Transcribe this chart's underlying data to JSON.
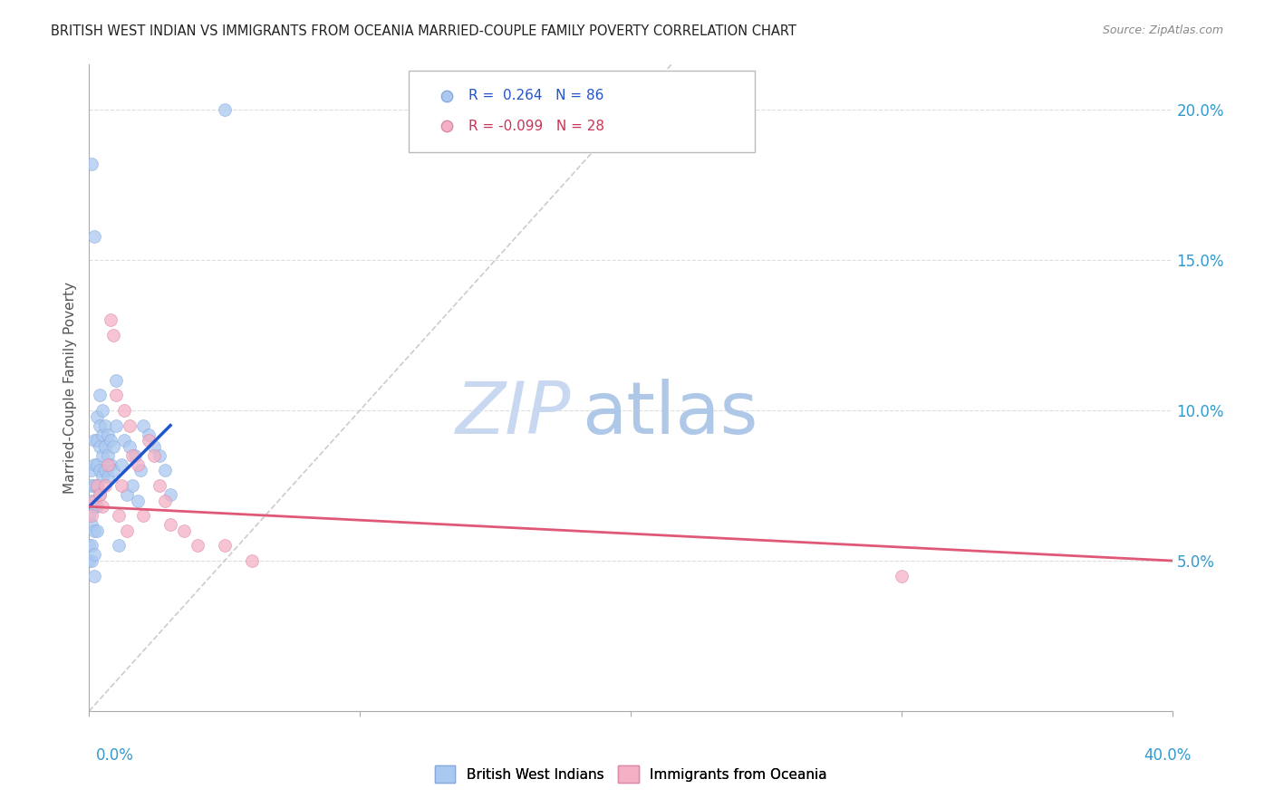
{
  "title": "BRITISH WEST INDIAN VS IMMIGRANTS FROM OCEANIA MARRIED-COUPLE FAMILY POVERTY CORRELATION CHART",
  "source": "Source: ZipAtlas.com",
  "ylabel": "Married-Couple Family Poverty",
  "ytick_labels": [
    "5.0%",
    "10.0%",
    "15.0%",
    "20.0%"
  ],
  "ytick_values": [
    0.05,
    0.1,
    0.15,
    0.2
  ],
  "blue_scatter_color": "#aac8f0",
  "pink_scatter_color": "#f4b0c4",
  "blue_line_color": "#2255cc",
  "pink_line_color": "#e05878",
  "diagonal_line_color": "#cccccc",
  "watermark_zip_color": "#c8d8f0",
  "watermark_atlas_color": "#b0c8e8",
  "R_blue": 0.264,
  "N_blue": 86,
  "R_pink": -0.099,
  "N_pink": 28,
  "xlim": [
    0.0,
    0.4
  ],
  "ylim": [
    0.0,
    0.215
  ],
  "blue_line_x": [
    0.0,
    0.03
  ],
  "blue_line_y": [
    0.068,
    0.095
  ],
  "pink_line_x": [
    0.0,
    0.4
  ],
  "pink_line_y": [
    0.068,
    0.05
  ],
  "diag_line_x": [
    0.0,
    0.215
  ],
  "diag_line_y": [
    0.0,
    0.215
  ],
  "blue_points_x": [
    0.0,
    0.0,
    0.0,
    0.001,
    0.001,
    0.001,
    0.001,
    0.001,
    0.001,
    0.002,
    0.002,
    0.002,
    0.002,
    0.002,
    0.002,
    0.002,
    0.003,
    0.003,
    0.003,
    0.003,
    0.003,
    0.003,
    0.004,
    0.004,
    0.004,
    0.004,
    0.004,
    0.005,
    0.005,
    0.005,
    0.005,
    0.006,
    0.006,
    0.006,
    0.007,
    0.007,
    0.007,
    0.008,
    0.008,
    0.009,
    0.009,
    0.01,
    0.01,
    0.011,
    0.012,
    0.013,
    0.014,
    0.015,
    0.016,
    0.017,
    0.018,
    0.019,
    0.02,
    0.022,
    0.024,
    0.026,
    0.028,
    0.03,
    0.001,
    0.002,
    0.05
  ],
  "blue_points_y": [
    0.065,
    0.055,
    0.05,
    0.08,
    0.075,
    0.07,
    0.062,
    0.055,
    0.05,
    0.09,
    0.082,
    0.075,
    0.068,
    0.06,
    0.052,
    0.045,
    0.098,
    0.09,
    0.082,
    0.075,
    0.068,
    0.06,
    0.105,
    0.095,
    0.088,
    0.08,
    0.072,
    0.1,
    0.092,
    0.085,
    0.078,
    0.095,
    0.088,
    0.08,
    0.092,
    0.085,
    0.078,
    0.09,
    0.082,
    0.088,
    0.08,
    0.11,
    0.095,
    0.055,
    0.082,
    0.09,
    0.072,
    0.088,
    0.075,
    0.085,
    0.07,
    0.08,
    0.095,
    0.092,
    0.088,
    0.085,
    0.08,
    0.072,
    0.182,
    0.158,
    0.2
  ],
  "pink_points_x": [
    0.001,
    0.002,
    0.003,
    0.004,
    0.005,
    0.006,
    0.007,
    0.008,
    0.009,
    0.01,
    0.011,
    0.012,
    0.013,
    0.014,
    0.015,
    0.016,
    0.018,
    0.02,
    0.022,
    0.024,
    0.026,
    0.028,
    0.03,
    0.035,
    0.04,
    0.05,
    0.06,
    0.3
  ],
  "pink_points_y": [
    0.065,
    0.07,
    0.075,
    0.072,
    0.068,
    0.075,
    0.082,
    0.13,
    0.125,
    0.105,
    0.065,
    0.075,
    0.1,
    0.06,
    0.095,
    0.085,
    0.082,
    0.065,
    0.09,
    0.085,
    0.075,
    0.07,
    0.062,
    0.06,
    0.055,
    0.055,
    0.05,
    0.045
  ]
}
